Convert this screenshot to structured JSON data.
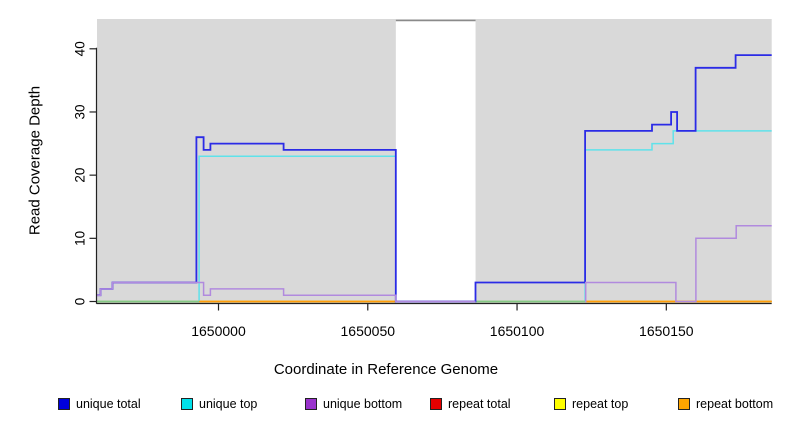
{
  "chart_data": {
    "type": "line",
    "subtype": "step-coverage",
    "title": "",
    "x_axis": {
      "label": "Coordinate in Reference Genome",
      "ticks": [
        1650000,
        1650050,
        1650100,
        1650150
      ],
      "range": [
        1649959.3,
        1650185.3
      ],
      "grid": false
    },
    "y_axis": {
      "label": "Read Coverage Depth",
      "ticks": [
        0,
        10,
        20,
        30,
        40
      ],
      "range": [
        0,
        43
      ],
      "grid": false
    },
    "plot_bg_color": "#d9d9d9",
    "highlight_band": {
      "from": 1650059.4,
      "to": 1650086.1,
      "color": "#ffffff",
      "top_border_color": "#8a8a8a"
    },
    "series": [
      {
        "name": "unique total",
        "line_color": "#2b2be6",
        "legend_color": "#0000dd",
        "parts": [
          {
            "points": [
              [
                1649959.3,
                1
              ],
              [
                1649960.5,
                2
              ],
              [
                1649964.5,
                3
              ],
              [
                1649992.6,
                26
              ],
              [
                1649995.0,
                24
              ],
              [
                1649997.3,
                25
              ],
              [
                1650021.8,
                24
              ],
              [
                1650059.4,
                0
              ],
              [
                1650086.1,
                3
              ],
              [
                1650122.8,
                27
              ],
              [
                1650145.2,
                28
              ],
              [
                1650151.6,
                30
              ],
              [
                1650153.6,
                27
              ],
              [
                1650159.8,
                37
              ],
              [
                1650173.2,
                39
              ]
            ],
            "end": 1650185.3
          }
        ]
      },
      {
        "name": "unique top",
        "line_color": "#5fe2ea",
        "legend_color": "#00e0ea",
        "parts": [
          {
            "points": [
              [
                1649959.3,
                0
              ],
              [
                1649993.5,
                23
              ],
              [
                1650059.4,
                0
              ],
              [
                1650122.8,
                24
              ],
              [
                1650145.2,
                25
              ],
              [
                1650152.3,
                27
              ]
            ],
            "end": 1650185.3
          }
        ]
      },
      {
        "name": "unique bottom",
        "line_color": "#b18ade",
        "legend_color": "#9933cc",
        "parts": [
          {
            "points": [
              [
                1649959.3,
                1
              ],
              [
                1649960.5,
                2
              ],
              [
                1649964.5,
                3
              ],
              [
                1649995.0,
                1
              ],
              [
                1649997.3,
                2
              ],
              [
                1650021.8,
                1
              ],
              [
                1650059.4,
                0
              ]
            ],
            "end": 1650086.1
          },
          {
            "points": [
              [
                1650122.8,
                0
              ],
              [
                1650123.0,
                3
              ],
              [
                1650153.2,
                0
              ],
              [
                1650159.9,
                10
              ],
              [
                1650173.4,
                12
              ]
            ],
            "end": 1650185.3
          }
        ]
      },
      {
        "name": "repeat total",
        "line_color": "#e60000",
        "legend_color": "#e60000",
        "parts": [
          {
            "points": [
              [
                1649959.3,
                0
              ]
            ],
            "end": 1650185.3
          }
        ]
      },
      {
        "name": "repeat top",
        "line_color": "#ffff00",
        "legend_color": "#ffff00",
        "parts": [
          {
            "points": [
              [
                1649959.3,
                0
              ]
            ],
            "end": 1650185.3
          }
        ]
      },
      {
        "name": "repeat bottom",
        "line_color": "#ff9d0a",
        "legend_color": "#ffa500",
        "parts": [
          {
            "points": [
              [
                1649993.5,
                0
              ]
            ],
            "end": 1650059.4
          },
          {
            "points": [
              [
                1650123.2,
                0
              ]
            ],
            "end": 1650185.3
          }
        ]
      }
    ],
    "baseline_overlays": [
      {
        "color": "#84c884",
        "from": 1649959.3,
        "to": 1649993.5,
        "value": 0
      },
      {
        "color": "#84c884",
        "from": 1650086.1,
        "to": 1650123.2,
        "value": 0
      }
    ],
    "draw_order": [
      "repeat total",
      "repeat top",
      "unique top",
      "__overlays__",
      "repeat bottom",
      "unique total",
      "unique bottom"
    ],
    "legend": {
      "position": "bottom",
      "items": [
        {
          "label": "unique total",
          "color": "#0000dd"
        },
        {
          "label": "unique top",
          "color": "#00e0ea"
        },
        {
          "label": "unique bottom",
          "color": "#9933cc"
        },
        {
          "label": "repeat total",
          "color": "#e60000"
        },
        {
          "label": "repeat top",
          "color": "#ffff00"
        },
        {
          "label": "repeat bottom",
          "color": "#ffa500"
        }
      ]
    }
  }
}
